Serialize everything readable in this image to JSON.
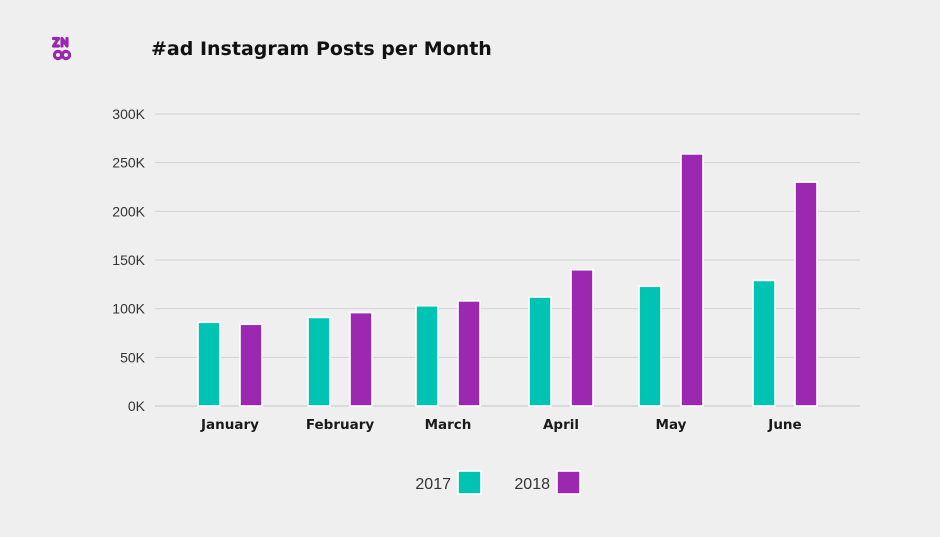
{
  "brand": {
    "logo_text": "ZN8",
    "logo_color": "#9b27b0"
  },
  "chart_data": {
    "type": "bar",
    "title": "#ad Instagram Posts per Month",
    "xlabel": "",
    "ylabel": "",
    "categories": [
      "January",
      "February",
      "March",
      "April",
      "May",
      "June"
    ],
    "series": [
      {
        "name": "2017",
        "color": "#00c4b3",
        "values": [
          86000,
          91000,
          103000,
          112000,
          123000,
          129000
        ]
      },
      {
        "name": "2018",
        "color": "#9c27b0",
        "values": [
          84000,
          96000,
          108000,
          140000,
          259000,
          230000
        ]
      }
    ],
    "ylim": [
      0,
      300000
    ],
    "yticks": [
      {
        "value": 0,
        "label": "0K"
      },
      {
        "value": 50000,
        "label": "50K"
      },
      {
        "value": 100000,
        "label": "100K"
      },
      {
        "value": 150000,
        "label": "150K"
      },
      {
        "value": 200000,
        "label": "200K"
      },
      {
        "value": 250000,
        "label": "250K"
      },
      {
        "value": 300000,
        "label": "300K"
      }
    ],
    "grid": true,
    "legend_position": "bottom-center"
  }
}
